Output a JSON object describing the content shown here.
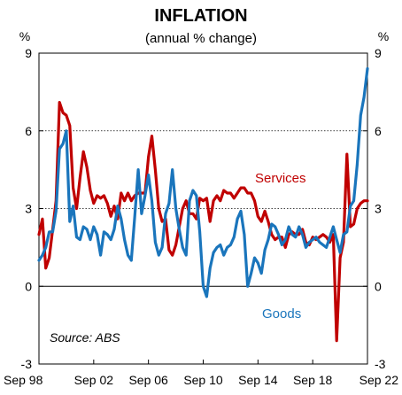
{
  "chart_data": {
    "type": "line",
    "title": "INFLATION",
    "subtitle": "(annual % change)",
    "y_unit_left": "%",
    "y_unit_right": "%",
    "ylim": [
      -3,
      9
    ],
    "yticks": [
      "9",
      "6",
      "3",
      "0",
      "-3"
    ],
    "ytick_values": [
      9,
      6,
      3,
      0,
      -3
    ],
    "gridlines_dotted_at": [
      3,
      6
    ],
    "xlim": [
      1998.7,
      2022.7
    ],
    "xtick_labels": [
      "Sep 98",
      "Sep 02",
      "Sep 06",
      "Sep 10",
      "Sep 14",
      "Sep 18",
      "Sep 22"
    ],
    "xtick_values": [
      1998.7,
      2002.7,
      2006.7,
      2010.7,
      2014.7,
      2018.7,
      2022.7
    ],
    "source": "Source: ABS",
    "series": [
      {
        "name": "Services",
        "color": "#c00000",
        "x": [
          1998.7,
          1998.95,
          1999.2,
          1999.45,
          1999.7,
          1999.95,
          2000.2,
          2000.45,
          2000.7,
          2000.95,
          2001.2,
          2001.45,
          2001.7,
          2001.95,
          2002.2,
          2002.45,
          2002.7,
          2002.95,
          2003.2,
          2003.45,
          2003.7,
          2003.95,
          2004.2,
          2004.45,
          2004.7,
          2004.95,
          2005.2,
          2005.45,
          2005.7,
          2005.95,
          2006.2,
          2006.45,
          2006.7,
          2006.95,
          2007.2,
          2007.45,
          2007.7,
          2007.95,
          2008.2,
          2008.45,
          2008.7,
          2008.95,
          2009.2,
          2009.45,
          2009.7,
          2009.95,
          2010.2,
          2010.45,
          2010.7,
          2010.95,
          2011.2,
          2011.45,
          2011.7,
          2011.95,
          2012.2,
          2012.45,
          2012.7,
          2012.95,
          2013.2,
          2013.45,
          2013.7,
          2013.95,
          2014.2,
          2014.45,
          2014.7,
          2014.95,
          2015.2,
          2015.45,
          2015.7,
          2015.95,
          2016.2,
          2016.45,
          2016.7,
          2016.95,
          2017.2,
          2017.45,
          2017.7,
          2017.95,
          2018.2,
          2018.45,
          2018.7,
          2018.95,
          2019.2,
          2019.45,
          2019.7,
          2019.95,
          2020.2,
          2020.45,
          2020.7,
          2020.95,
          2021.2,
          2021.45,
          2021.7,
          2021.95,
          2022.2,
          2022.45,
          2022.7
        ],
        "values": [
          2.0,
          2.6,
          0.7,
          1.1,
          2.2,
          3.3,
          7.1,
          6.7,
          6.6,
          6.2,
          3.8,
          3.0,
          4.2,
          5.2,
          4.6,
          3.7,
          3.2,
          3.5,
          3.4,
          3.5,
          3.2,
          2.7,
          3.1,
          2.6,
          3.6,
          3.3,
          3.6,
          3.3,
          3.5,
          3.6,
          3.6,
          3.6,
          5.0,
          5.8,
          4.5,
          3.0,
          2.5,
          2.6,
          1.4,
          1.2,
          1.6,
          2.3,
          3.0,
          3.3,
          2.8,
          2.8,
          2.6,
          3.4,
          3.3,
          3.4,
          2.5,
          3.3,
          3.5,
          3.3,
          3.7,
          3.6,
          3.6,
          3.4,
          3.6,
          3.8,
          3.8,
          3.6,
          3.6,
          3.3,
          2.7,
          2.5,
          2.9,
          2.5,
          2.0,
          1.8,
          1.9,
          1.9,
          1.5,
          2.0,
          2.1,
          2.0,
          2.0,
          2.2,
          1.7,
          1.6,
          1.9,
          1.8,
          1.9,
          2.0,
          1.9,
          1.7,
          2.0,
          -2.1,
          1.1,
          1.7,
          5.1,
          2.3,
          2.4,
          3.0,
          3.2,
          3.3,
          3.3
        ]
      },
      {
        "name": "Goods",
        "color": "#1a75bc",
        "x": [
          1998.7,
          1998.95,
          1999.2,
          1999.45,
          1999.7,
          1999.95,
          2000.2,
          2000.45,
          2000.7,
          2000.95,
          2001.2,
          2001.45,
          2001.7,
          2001.95,
          2002.2,
          2002.45,
          2002.7,
          2002.95,
          2003.2,
          2003.45,
          2003.7,
          2003.95,
          2004.2,
          2004.45,
          2004.7,
          2004.95,
          2005.2,
          2005.45,
          2005.7,
          2005.95,
          2006.2,
          2006.45,
          2006.7,
          2006.95,
          2007.2,
          2007.45,
          2007.7,
          2007.95,
          2008.2,
          2008.45,
          2008.7,
          2008.95,
          2009.2,
          2009.45,
          2009.7,
          2009.95,
          2010.2,
          2010.45,
          2010.7,
          2010.95,
          2011.2,
          2011.45,
          2011.7,
          2011.95,
          2012.2,
          2012.45,
          2012.7,
          2012.95,
          2013.2,
          2013.45,
          2013.7,
          2013.95,
          2014.2,
          2014.45,
          2014.7,
          2014.95,
          2015.2,
          2015.45,
          2015.7,
          2015.95,
          2016.2,
          2016.45,
          2016.7,
          2016.95,
          2017.2,
          2017.45,
          2017.7,
          2017.95,
          2018.2,
          2018.45,
          2018.7,
          2018.95,
          2019.2,
          2019.45,
          2019.7,
          2019.95,
          2020.2,
          2020.45,
          2020.7,
          2020.95,
          2021.2,
          2021.45,
          2021.7,
          2021.95,
          2022.2,
          2022.45,
          2022.7
        ],
        "values": [
          1.0,
          1.2,
          1.5,
          2.1,
          2.1,
          2.9,
          5.3,
          5.5,
          6.0,
          2.5,
          3.1,
          1.9,
          1.8,
          2.3,
          2.2,
          1.8,
          2.3,
          2.0,
          1.2,
          2.1,
          2.0,
          1.8,
          2.2,
          3.1,
          2.6,
          1.8,
          1.2,
          1.0,
          2.7,
          4.5,
          2.8,
          3.5,
          4.3,
          3.3,
          1.7,
          1.2,
          1.5,
          2.8,
          3.2,
          4.5,
          3.0,
          2.2,
          1.5,
          1.2,
          3.3,
          3.7,
          3.5,
          2.1,
          0.0,
          -0.4,
          0.7,
          1.3,
          1.5,
          1.6,
          1.2,
          1.5,
          1.6,
          1.9,
          2.6,
          2.9,
          2.0,
          0.0,
          0.5,
          1.1,
          0.9,
          0.5,
          1.4,
          1.8,
          2.4,
          2.3,
          2.0,
          1.6,
          1.8,
          2.3,
          2.0,
          1.9,
          2.3,
          2.0,
          1.5,
          1.7,
          1.8,
          1.9,
          1.7,
          1.6,
          1.5,
          1.9,
          2.3,
          1.8,
          1.3,
          2.0,
          2.1,
          3.1,
          3.3,
          4.7,
          6.6,
          7.3,
          8.4
        ]
      }
    ],
    "annotations": [
      {
        "text": "Services",
        "color": "#c00000"
      },
      {
        "text": "Goods",
        "color": "#1a75bc"
      }
    ]
  }
}
